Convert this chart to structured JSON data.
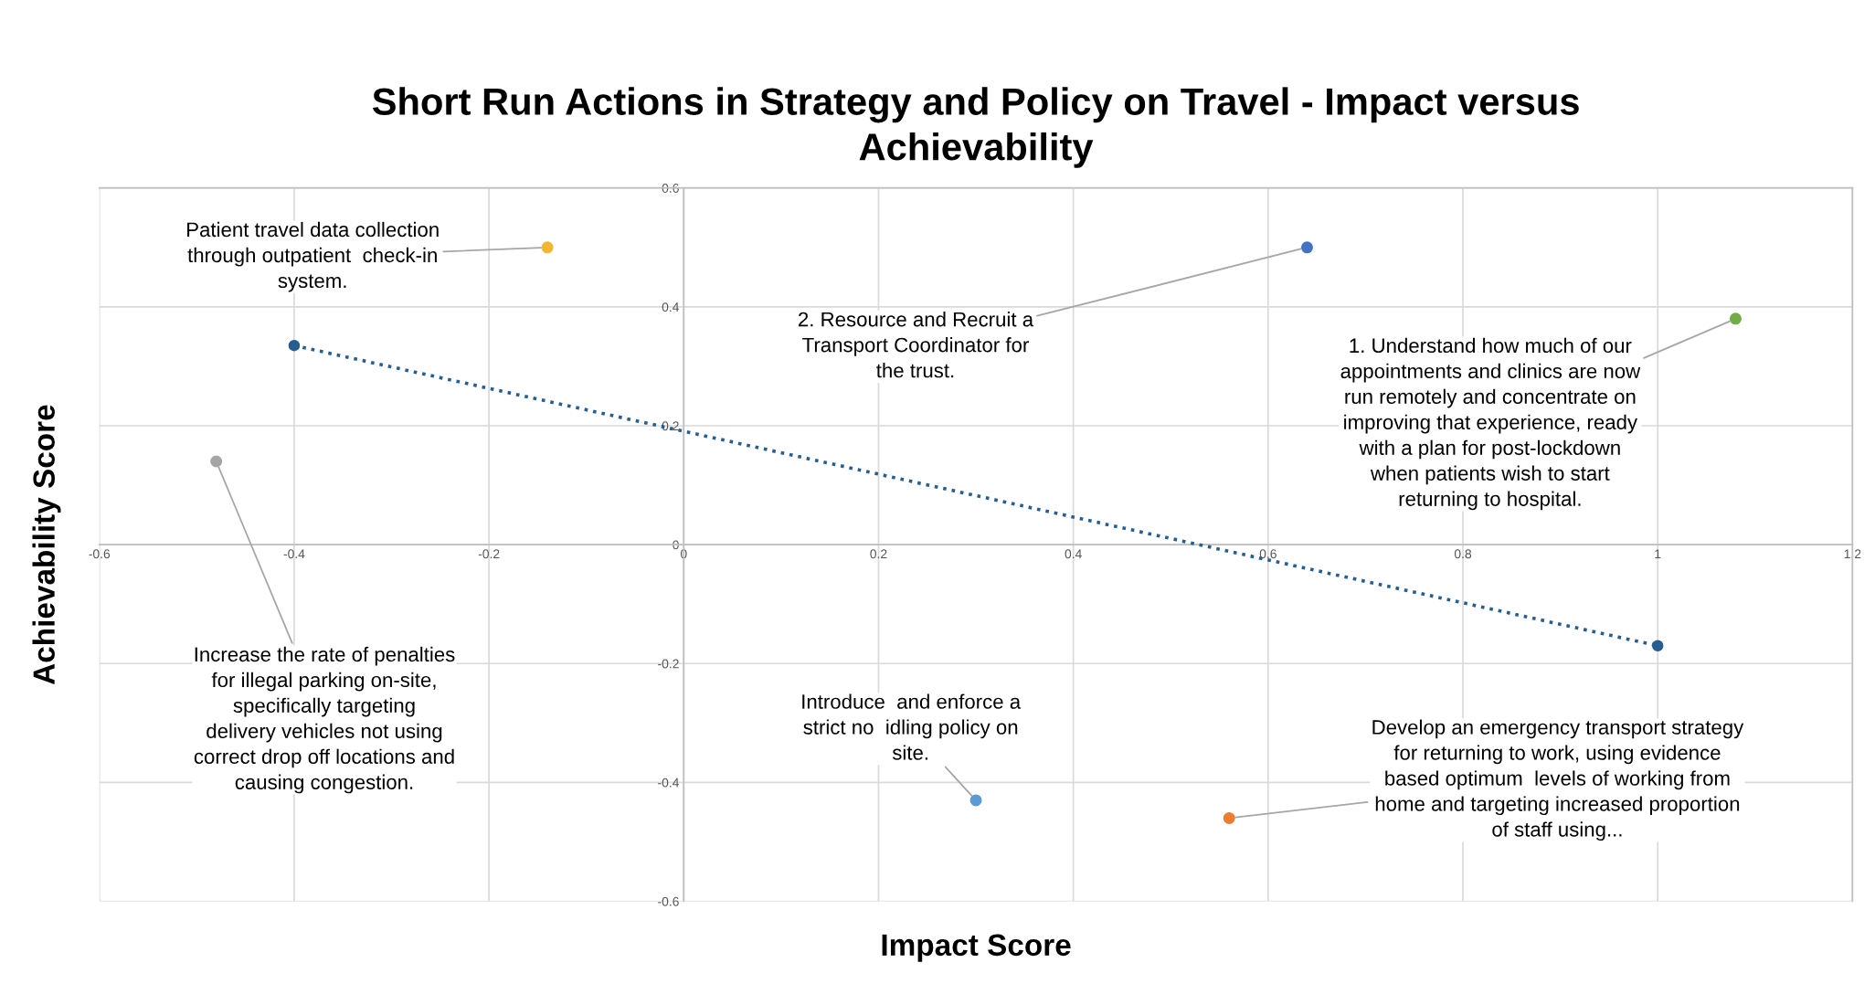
{
  "chart_data": {
    "type": "scatter",
    "title": "Short Run Actions in Strategy and Policy on Travel - Impact versus Achievability",
    "xlabel": "Impact Score",
    "ylabel": "Achievability Score",
    "xlim": [
      -0.6,
      1.2
    ],
    "ylim": [
      -0.6,
      0.6
    ],
    "xticks": [
      -0.6,
      -0.4,
      -0.2,
      0,
      0.2,
      0.4,
      0.6,
      0.8,
      1,
      1.2
    ],
    "yticks": [
      -0.6,
      -0.4,
      -0.2,
      0,
      0.2,
      0.4,
      0.6
    ],
    "grid": true,
    "legend": false,
    "marker": "circle",
    "series": [
      {
        "x": [
          -0.14,
          0.64,
          1.08,
          -0.48,
          0.3,
          0.56
        ],
        "values": [
          0.5,
          0.5,
          0.38,
          0.14,
          -0.43,
          -0.46
        ],
        "colors": [
          "#f2b632",
          "#4472c4",
          "#70ad47",
          "#a5a5a5",
          "#5b9bd5",
          "#ed7d31"
        ]
      },
      {
        "type": "line",
        "x": [
          -0.4,
          1
        ],
        "values": [
          0.335,
          -0.17
        ],
        "color": "#255e91",
        "line_style": "dotted",
        "marker": "circle"
      }
    ],
    "annotations": [
      {
        "text": "Patient travel data collection through outpatient  check-in system.",
        "x": -0.14,
        "y": 0.5
      },
      {
        "text": "2. Resource and Recruit a Transport Coordinator for the trust.",
        "x": 0.64,
        "y": 0.5
      },
      {
        "text": "1. Understand how much of our appointments and clinics are now run remotely and concentrate on improving that experience, ready with a plan for post-lockdown when patients wish to start returning to hospital.",
        "x": 1.08,
        "y": 0.38
      },
      {
        "text": "Increase the rate of penalties for illegal parking on-site, specifically targeting delivery vehicles not using correct drop off locations and causing congestion.",
        "x": -0.48,
        "y": 0.14
      },
      {
        "text": "Introduce  and enforce a strict no  idling policy on site.",
        "x": 0.3,
        "y": -0.43
      },
      {
        "text": "Develop an emergency transport strategy for returning to work, using evidence based optimum  levels of working from home and targeting increased proportion of staff using...",
        "x": 0.56,
        "y": -0.46
      }
    ]
  }
}
